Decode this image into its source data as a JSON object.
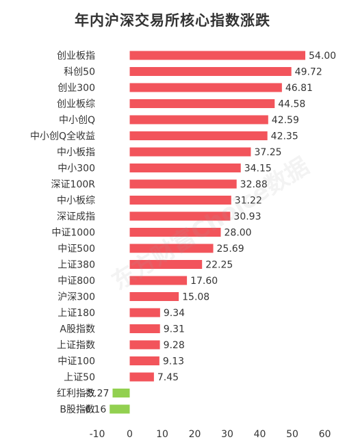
{
  "chart_data": {
    "type": "bar",
    "orientation": "horizontal",
    "title": "年内沪深交易所核心指数涨跌",
    "xlabel": "",
    "ylabel": "",
    "xlim": [
      -10,
      60
    ],
    "xticks": [
      -10,
      0,
      10,
      20,
      30,
      40,
      50,
      60
    ],
    "grid": false,
    "legend": "none",
    "colors": {
      "positive": "#f2545b",
      "negative": "#92d050",
      "text": "#333333"
    },
    "categories": [
      "创业板指",
      "科创50",
      "创业300",
      "创业板综",
      "中小创Q",
      "中小创Q全收益",
      "中小板指",
      "中小300",
      "深证100R",
      "中小板综",
      "深证成指",
      "中证1000",
      "中证500",
      "上证380",
      "中证800",
      "沪深300",
      "上证180",
      "A股指数",
      "上证指数",
      "中证100",
      "上证50",
      "红利指数",
      "B股指数"
    ],
    "values": [
      54.0,
      49.72,
      46.81,
      44.58,
      42.59,
      42.35,
      37.25,
      34.15,
      32.88,
      31.22,
      30.93,
      28.0,
      25.69,
      22.25,
      17.6,
      15.08,
      9.34,
      9.31,
      9.28,
      9.13,
      7.45,
      -5.27,
      -6.16
    ],
    "data_labels": [
      "54.00",
      "49.72",
      "46.81",
      "44.58",
      "42.59",
      "42.35",
      "37.25",
      "34.15",
      "32.88",
      "31.22",
      "30.93",
      "28.00",
      "25.69",
      "22.25",
      "17.60",
      "15.08",
      "9.34",
      "9.31",
      "9.28",
      "9.13",
      "7.45",
      "-5.27",
      "-6.16"
    ],
    "watermark": "东方财富Choice数据"
  }
}
